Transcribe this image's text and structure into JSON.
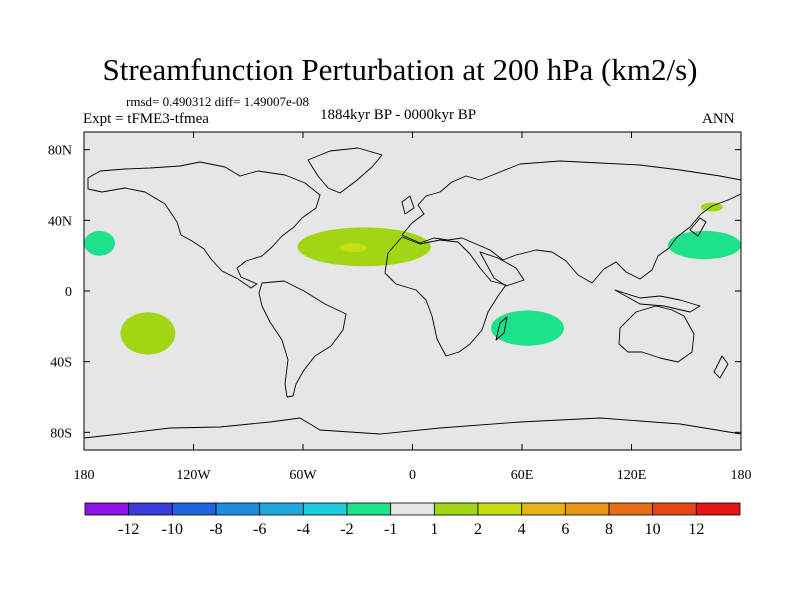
{
  "title": "Streamfunction Perturbation at 200 hPa (km2/s)",
  "stats_line": "rmsd= 0.490312 diff= 1.49007e-08",
  "experiment": "Expt = tFME3-tfmea",
  "period": "1884kyr BP - 0000kyr BP",
  "season": "ANN",
  "map": {
    "projection": "cylindrical-equidistant",
    "lon_range": [
      -180,
      180
    ],
    "lat_range": [
      -90,
      90
    ],
    "background_color": "#e6e6e6",
    "coastline_color": "#000000",
    "lon_ticks": [
      {
        "value": -180,
        "label": "180"
      },
      {
        "value": -120,
        "label": "120W"
      },
      {
        "value": -60,
        "label": "60W"
      },
      {
        "value": 0,
        "label": "0"
      },
      {
        "value": 60,
        "label": "60E"
      },
      {
        "value": 120,
        "label": "120E"
      },
      {
        "value": 180,
        "label": "180"
      }
    ],
    "lat_ticks": [
      {
        "value": 80,
        "label": "80N"
      },
      {
        "value": 40,
        "label": "40N"
      },
      {
        "value": 0,
        "label": "0"
      },
      {
        "value": -40,
        "label": "40S"
      },
      {
        "value": -80,
        "label": "80S"
      }
    ]
  },
  "chart_data": {
    "type": "contour-map",
    "variable": "Streamfunction Perturbation at 200 hPa",
    "units": "km2/s",
    "regions": [
      {
        "name": "north-atlantic-positive",
        "level": "1 to 2",
        "lon": [
          -63,
          10
        ],
        "lat": [
          14,
          36
        ],
        "color": "#a0d614"
      },
      {
        "name": "north-atlantic-core",
        "level": "2 to 4",
        "lon": [
          -40,
          -25
        ],
        "lat": [
          22,
          27
        ],
        "color": "#c8dc14"
      },
      {
        "name": "south-pacific-positive",
        "level": "1 to 2",
        "lon": [
          -160,
          -130
        ],
        "lat": [
          -36,
          -12
        ],
        "color": "#a0d614"
      },
      {
        "name": "southwest-indian-negative",
        "level": "-2 to -1",
        "lon": [
          43,
          83
        ],
        "lat": [
          -31,
          -11
        ],
        "color": "#1ee18c"
      },
      {
        "name": "north-pacific-negative",
        "level": "-2 to -1",
        "lon": [
          140,
          180
        ],
        "lat": [
          18,
          34
        ],
        "color": "#1ee18c"
      },
      {
        "name": "north-pacific-small-positive",
        "level": "1 to 2",
        "lon": [
          158,
          170
        ],
        "lat": [
          45,
          50
        ],
        "color": "#a0d614"
      },
      {
        "name": "dateline-west-negative",
        "level": "-2 to -1",
        "lon": [
          -180,
          -163
        ],
        "lat": [
          20,
          34
        ],
        "color": "#1ee18c"
      }
    ]
  },
  "colorbar": {
    "colors": [
      "#8c14e6",
      "#3c3cdc",
      "#1e64dc",
      "#1e8cdc",
      "#1eaadc",
      "#1ecddc",
      "#1ee18c",
      "#e6e6e6",
      "#a0d614",
      "#c8dc14",
      "#e6b414",
      "#e69614",
      "#e66e14",
      "#e64614",
      "#e61414"
    ],
    "labels": [
      "-12",
      "-10",
      "-8",
      "-6",
      "-4",
      "-2",
      "-1",
      "1",
      "2",
      "4",
      "6",
      "8",
      "10",
      "12"
    ]
  }
}
